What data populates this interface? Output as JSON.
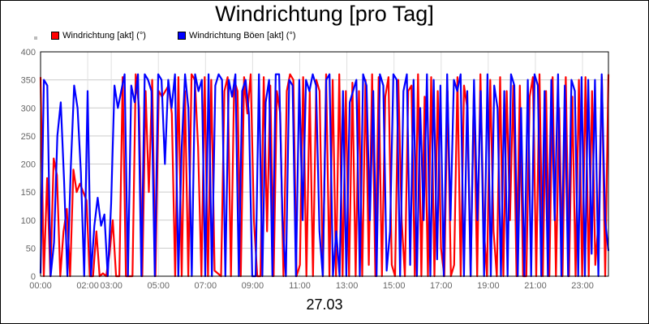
{
  "chart_data": {
    "type": "line",
    "title": "Windrichtung [pro Tag]",
    "date_label": "27.03",
    "xlabel": "",
    "ylabel": "",
    "ylim": [
      0,
      400
    ],
    "yticks": [
      0,
      50,
      100,
      150,
      200,
      250,
      300,
      350,
      400
    ],
    "xticks": [
      "00:00",
      "02:00",
      "03:00",
      "05:00",
      "07:00",
      "09:00",
      "11:00",
      "13:00",
      "15:00",
      "17:00",
      "19:00",
      "21:00",
      "23:00"
    ],
    "xtick_hours": [
      0,
      2,
      3,
      5,
      7,
      9,
      11,
      13,
      15,
      17,
      19,
      21,
      23
    ],
    "xlim_hours": [
      0,
      24.1
    ],
    "grid": true,
    "legend": "top-left",
    "series": [
      {
        "name": "Windrichtung [akt] (°)",
        "color": "#ff0000",
        "values": [
          355,
          0,
          175,
          0,
          210,
          180,
          0,
          80,
          120,
          0,
          190,
          150,
          165,
          150,
          135,
          0,
          0,
          80,
          0,
          5,
          0,
          40,
          100,
          0,
          0,
          355,
          0,
          0,
          0,
          360,
          300,
          0,
          330,
          150,
          350,
          0,
          330,
          320,
          330,
          340,
          290,
          0,
          355,
          0,
          330,
          0,
          360,
          350,
          230,
          0,
          355,
          0,
          350,
          10,
          5,
          0,
          330,
          355,
          0,
          350,
          330,
          0,
          355,
          290,
          360,
          100,
          0,
          0,
          355,
          80,
          340,
          0,
          330,
          290,
          0,
          330,
          360,
          350,
          0,
          20,
          355,
          0,
          330,
          0,
          350,
          330,
          0,
          360,
          0,
          350,
          0,
          360,
          0,
          330,
          0,
          345,
          0,
          330,
          0,
          350,
          20,
          360,
          0,
          355,
          0,
          320,
          355,
          20,
          0,
          350,
          100,
          0,
          330,
          340,
          0,
          360,
          0,
          320,
          0,
          355,
          0,
          330,
          50,
          0,
          330,
          0,
          20,
          355,
          0,
          340,
          300,
          0,
          330,
          0,
          360,
          90,
          0,
          350,
          80,
          0,
          355,
          0,
          330,
          100,
          340,
          0,
          340,
          0,
          0,
          320,
          355,
          0,
          360,
          0,
          330,
          0,
          355,
          0,
          300,
          0,
          355,
          0,
          320,
          0,
          350,
          0,
          355,
          0,
          330,
          20,
          100,
          355,
          0,
          360
        ]
      },
      {
        "name": "Windrichtung Böen [akt] (°)",
        "color": "#0000ff",
        "values": [
          5,
          350,
          340,
          0,
          60,
          250,
          310,
          170,
          0,
          195,
          340,
          300,
          185,
          0,
          330,
          0,
          90,
          140,
          90,
          110,
          0,
          130,
          340,
          300,
          330,
          360,
          0,
          340,
          310,
          360,
          0,
          360,
          350,
          330,
          0,
          360,
          350,
          200,
          350,
          300,
          360,
          0,
          230,
          360,
          300,
          0,
          360,
          330,
          350,
          0,
          360,
          0,
          340,
          360,
          350,
          0,
          350,
          320,
          360,
          0,
          330,
          350,
          290,
          0,
          0,
          360,
          0,
          310,
          350,
          0,
          360,
          360,
          100,
          0,
          350,
          340,
          0,
          350,
          100,
          350,
          330,
          360,
          340,
          80,
          0,
          350,
          360,
          0,
          80,
          0,
          330,
          0,
          310,
          330,
          350,
          0,
          360,
          340,
          100,
          330,
          0,
          360,
          340,
          10,
          80,
          360,
          350,
          0,
          330,
          360,
          20,
          350,
          0,
          300,
          100,
          360,
          0,
          350,
          30,
          340,
          0,
          360,
          100,
          350,
          330,
          360,
          0,
          330,
          0,
          350,
          100,
          330,
          0,
          360,
          0,
          340,
          300,
          0,
          330,
          0,
          360,
          340,
          0,
          300,
          0,
          350,
          0,
          360,
          340,
          0,
          330,
          0,
          350,
          100,
          360,
          0,
          340,
          0,
          350,
          330,
          0,
          355,
          0,
          350,
          40,
          350,
          0,
          360,
          100,
          45
        ]
      }
    ]
  }
}
